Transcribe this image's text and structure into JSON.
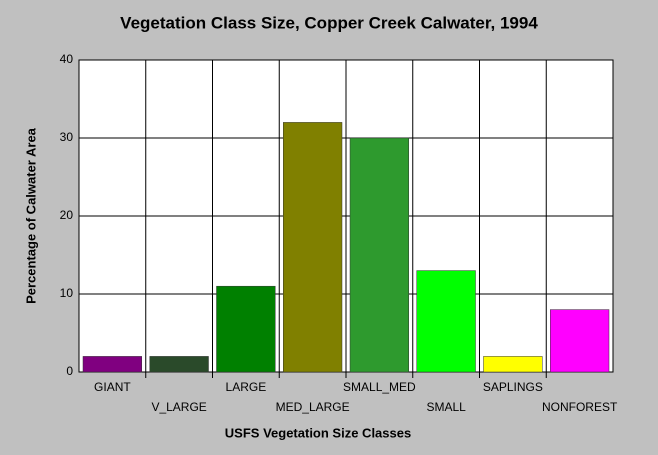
{
  "chart_data": {
    "type": "bar",
    "title": "Vegetation Class Size, Copper Creek Calwater, 1994",
    "x_label": "USFS Vegetation Size Classes",
    "y_label": "Percentage of Calwater Area",
    "categories": [
      "GIANT",
      "V_LARGE",
      "LARGE",
      "MED_LARGE",
      "SMALL_MED",
      "SMALL",
      "SAPLINGS",
      "NONFOREST"
    ],
    "values": [
      2,
      2,
      11,
      32,
      30,
      13,
      2,
      8
    ],
    "colors": [
      "#800080",
      "#2a4a2a",
      "#008000",
      "#808000",
      "#2e9a2e",
      "#00ff00",
      "#ffff00",
      "#ff00ff"
    ],
    "ylim": [
      0,
      40
    ],
    "yticks": [
      0,
      10,
      20,
      30,
      40
    ],
    "grid": true
  }
}
